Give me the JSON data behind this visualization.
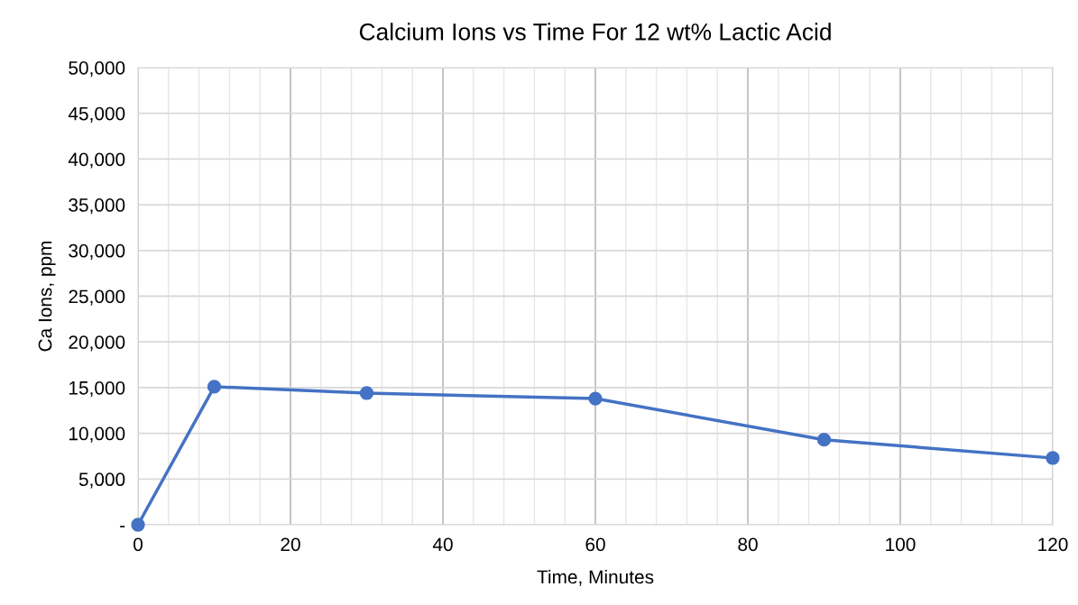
{
  "chart_data": {
    "type": "line",
    "title": "Calcium Ions vs Time For 12 wt% Lactic Acid",
    "xlabel": "Time, Minutes",
    "ylabel": "Ca Ions, ppm",
    "x": [
      0,
      10,
      30,
      60,
      90,
      120
    ],
    "series": [
      {
        "color": "#4472c4",
        "values": [
          0,
          15100,
          14400,
          13800,
          9300,
          7300
        ]
      }
    ],
    "xlim": [
      0,
      120
    ],
    "ylim": [
      0,
      50000
    ],
    "xticks": [
      0,
      {
        "value": 4,
        "label": null
      },
      {
        "value": 8,
        "label": null
      },
      {
        "value": 12,
        "label": null
      },
      {
        "value": 16,
        "label": null
      },
      20,
      {
        "value": 24,
        "label": null
      },
      {
        "value": 28,
        "label": null
      },
      {
        "value": 32,
        "label": null
      },
      {
        "value": 36,
        "label": null
      },
      40,
      {
        "value": 44,
        "label": null
      },
      {
        "value": 48,
        "label": null
      },
      {
        "value": 52,
        "label": null
      },
      {
        "value": 56,
        "label": null
      },
      60,
      {
        "value": 64,
        "label": null
      },
      {
        "value": 68,
        "label": null
      },
      {
        "value": 72,
        "label": null
      },
      {
        "value": 76,
        "label": null
      },
      80,
      {
        "value": 84,
        "label": null
      },
      {
        "value": 88,
        "label": null
      },
      {
        "value": 92,
        "label": null
      },
      {
        "value": 96,
        "label": null
      },
      100,
      {
        "value": 104,
        "label": null
      },
      {
        "value": 108,
        "label": null
      },
      {
        "value": 112,
        "label": null
      },
      {
        "value": 116,
        "label": null
      },
      120
    ],
    "yticks": [
      {
        "value": 0,
        "label": "-"
      },
      {
        "value": 5000,
        "label": "5,000"
      },
      {
        "value": 10000,
        "label": "10,000"
      },
      {
        "value": 15000,
        "label": "15,000"
      },
      {
        "value": 20000,
        "label": "20,000"
      },
      {
        "value": 25000,
        "label": "25,000"
      },
      {
        "value": 30000,
        "label": "30,000"
      },
      {
        "value": 35000,
        "label": "35,000"
      },
      {
        "value": 40000,
        "label": "40,000"
      },
      {
        "value": 45000,
        "label": "45,000"
      },
      {
        "value": 50000,
        "label": "50,000"
      }
    ],
    "grid": true,
    "marker": "circle",
    "line_style": "solid"
  }
}
